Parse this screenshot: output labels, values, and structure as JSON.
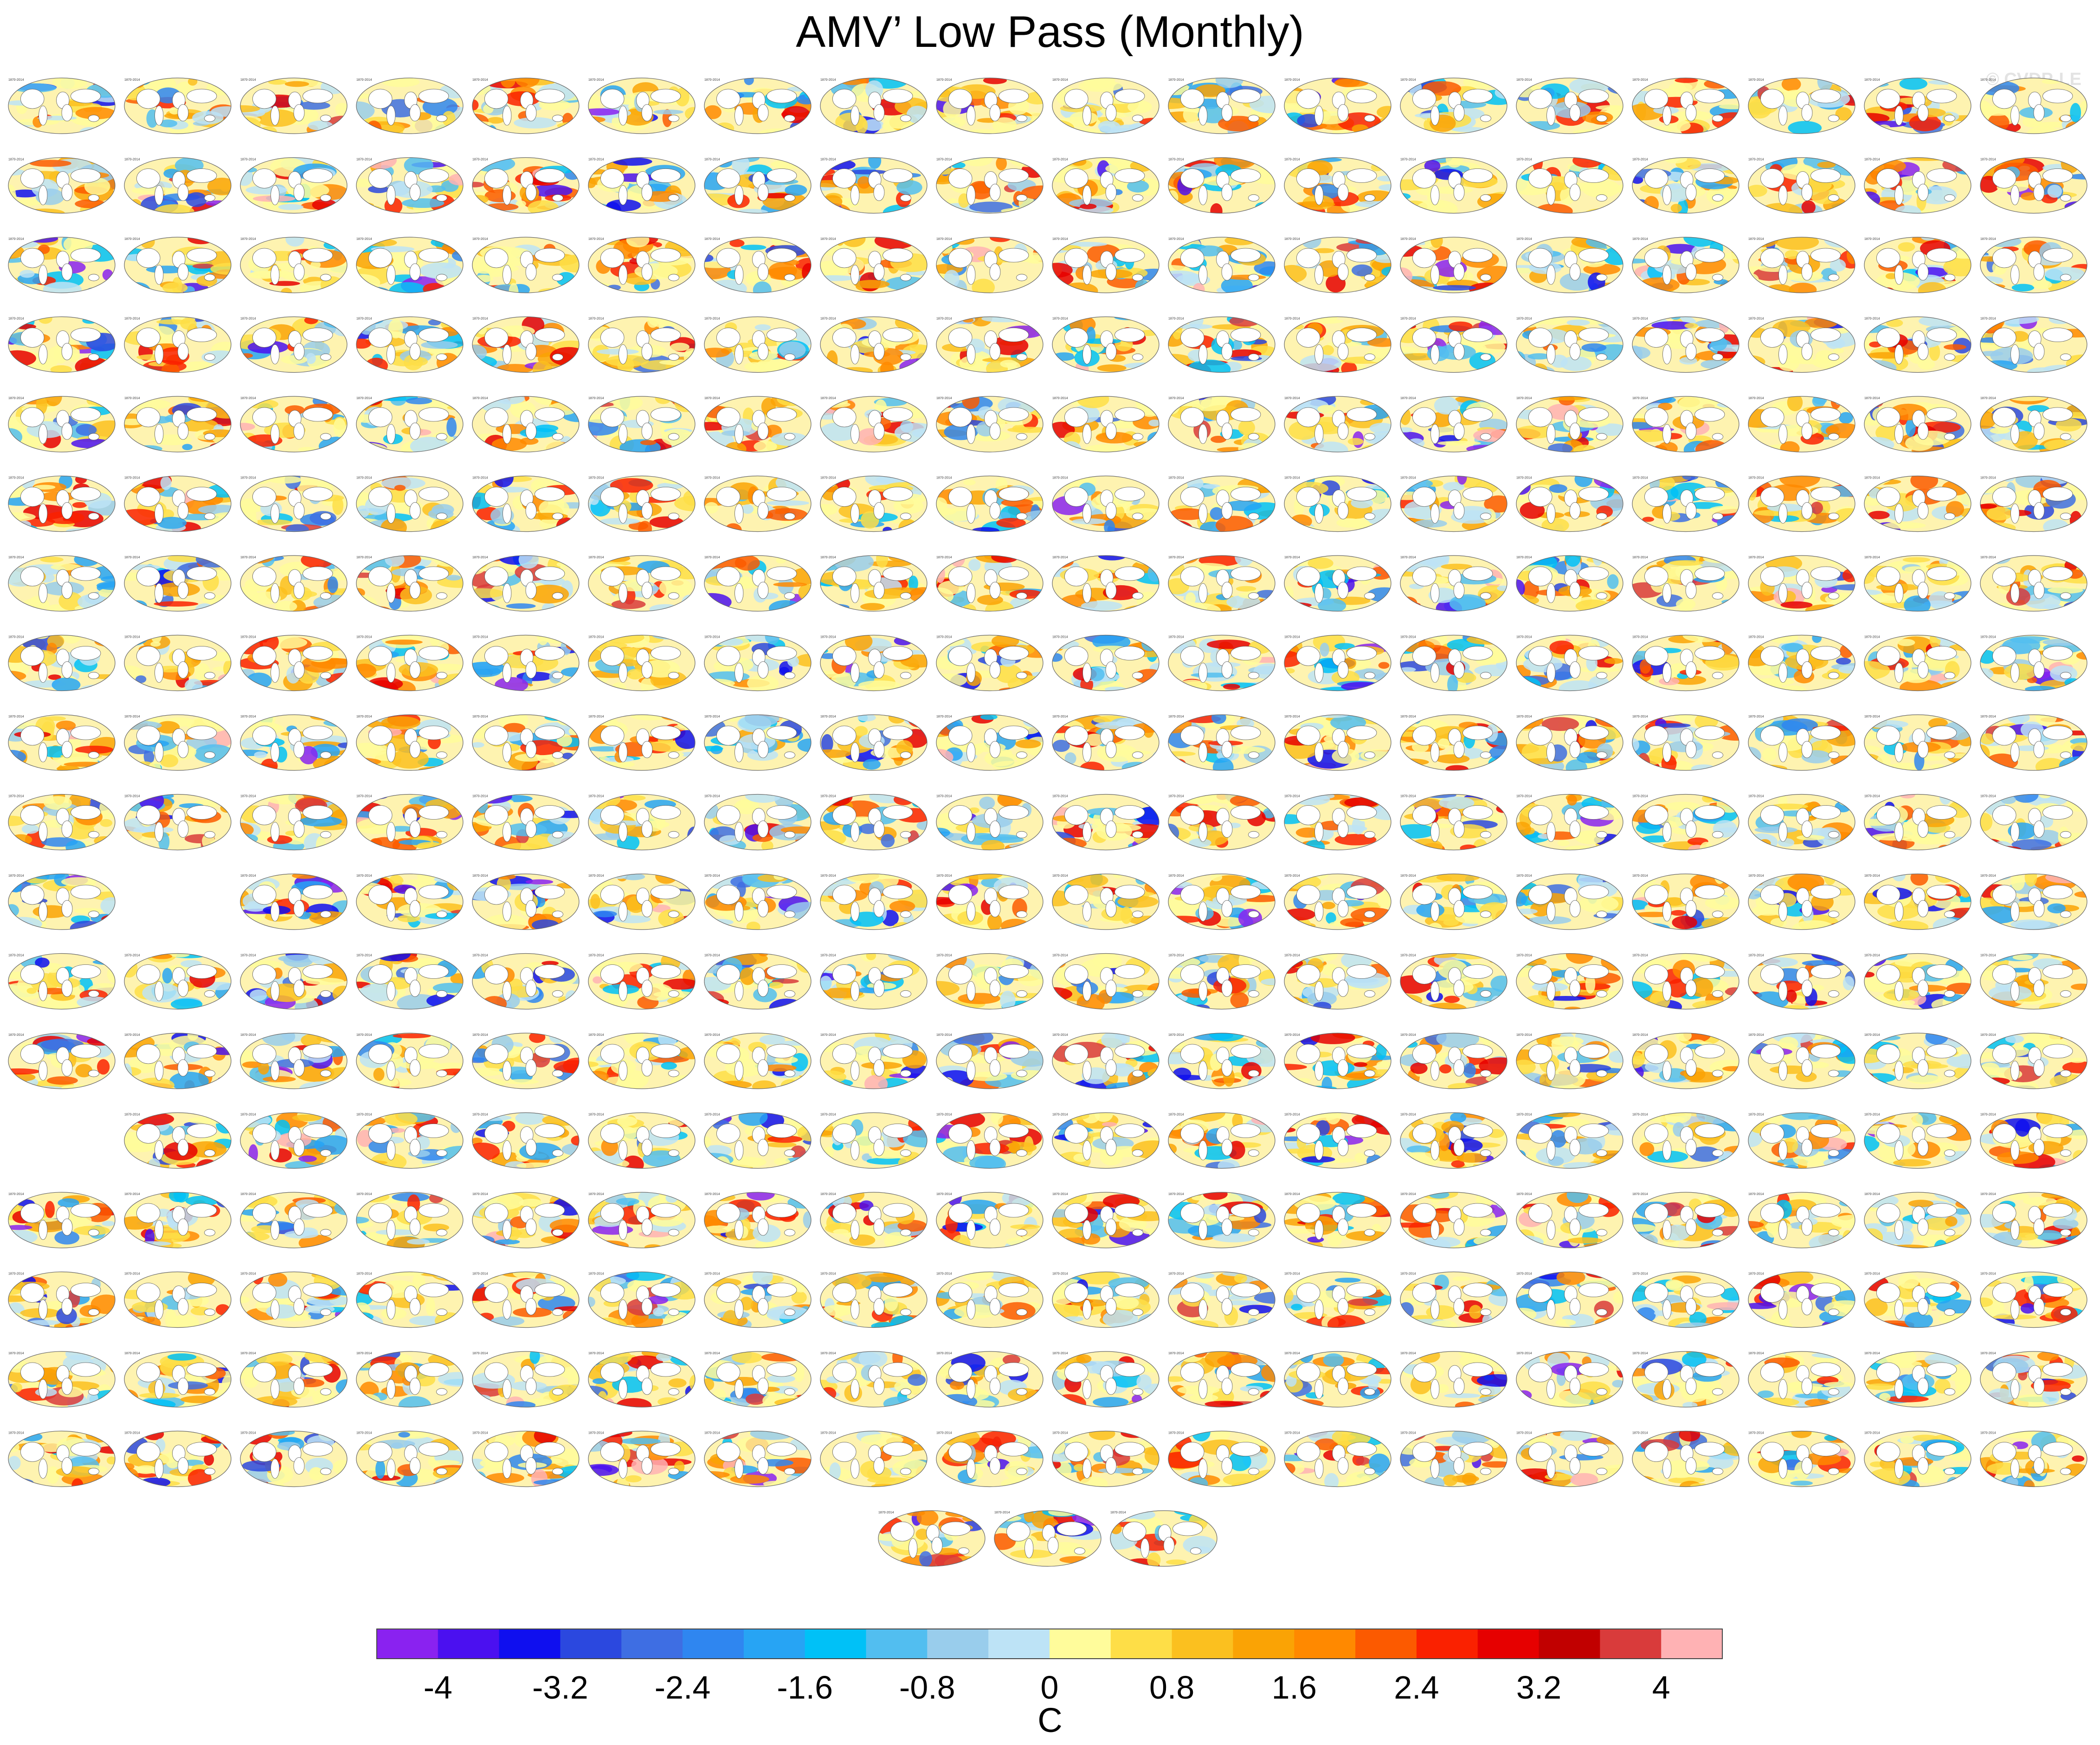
{
  "title": "AMV’ Low Pass (Monthly)",
  "watermark": "© CVDP-LE",
  "chart_data": {
    "type": "heatmap",
    "title": "AMV’ Low Pass (Monthly)",
    "panel_layout": {
      "columns": 18,
      "row_counts": [
        18,
        18,
        18,
        18,
        18,
        18,
        18,
        18,
        18,
        18,
        17,
        18,
        18,
        17,
        18,
        18,
        18,
        18,
        3
      ],
      "row_start_column": [
        0,
        0,
        0,
        0,
        0,
        0,
        0,
        0,
        0,
        0,
        0,
        0,
        0,
        1,
        0,
        0,
        0,
        0,
        7.5
      ],
      "row11_skipped_column": 1
    },
    "panel_period": "1870-2014",
    "colorbar": {
      "unit": "C",
      "tick_labels": [
        "-4",
        "-3.2",
        "-2.4",
        "-1.6",
        "-0.8",
        "0",
        "0.8",
        "1.6",
        "2.4",
        "3.2",
        "4"
      ],
      "tick_values": [
        -4,
        -3.2,
        -2.4,
        -1.6,
        -0.8,
        0,
        0.8,
        1.6,
        2.4,
        3.2,
        4
      ],
      "range": [
        -4.4,
        4.4
      ],
      "colors": [
        "#8a22f0",
        "#4b10f0",
        "#0f0fef",
        "#2b48df",
        "#3e6ee3",
        "#2f86f0",
        "#27a4f4",
        "#00c1f7",
        "#52bef0",
        "#99cdec",
        "#bde3f6",
        "#fffc9b",
        "#fede47",
        "#fbc01f",
        "#faa305",
        "#ff8900",
        "#fc5a00",
        "#fa2100",
        "#e60000",
        "#c10000",
        "#d93b3b",
        "#ffb2b4"
      ]
    }
  }
}
